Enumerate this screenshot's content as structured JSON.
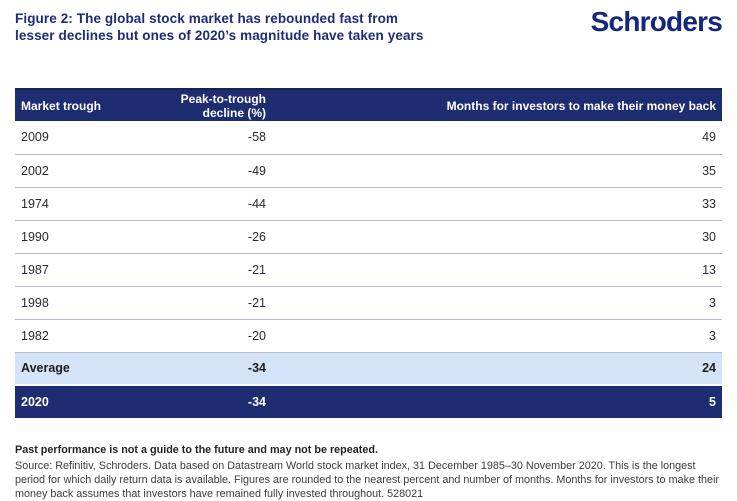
{
  "header": {
    "title_line1": "Figure 2: The global stock market has rebounded fast from",
    "title_line2": "lesser declines but ones of 2020’s magnitude have taken years",
    "logo": {
      "pre": "Schr",
      "o": "o",
      "post": "ders"
    }
  },
  "chart_data": {
    "type": "table",
    "title": "Figure 2: The global stock market has rebounded fast from lesser declines but ones of 2020’s magnitude have taken years",
    "columns": [
      "Market trough",
      "Peak-to-trough decline (%)",
      "Months for investors to make their money back"
    ],
    "rows": [
      [
        "2009",
        -58,
        49
      ],
      [
        "2002",
        -49,
        35
      ],
      [
        "1974",
        -44,
        33
      ],
      [
        "1990",
        -26,
        30
      ],
      [
        "1987",
        -21,
        13
      ],
      [
        "1998",
        -21,
        3
      ],
      [
        "1982",
        -20,
        3
      ]
    ],
    "summary_rows": [
      {
        "label": "Average",
        "decline": -34,
        "months": 24,
        "style": "light-blue"
      },
      {
        "label": "2020",
        "decline": -34,
        "months": 5,
        "style": "navy"
      }
    ]
  },
  "footer": {
    "disclaimer": "Past performance is not a guide to the future and may not be repeated.",
    "source": "Source: Refinitiv, Schroders. Data based on Datastream World stock market index, 31 December 1985–30 November 2020. This is the longest period for which daily return data is available. Figures are rounded to the nearest percent and number of months. Months for investors to make their money back assumes that investors have remained fully invested throughout. 528021"
  },
  "colors": {
    "navy": "#1e2c72",
    "brand_navy": "#14267e",
    "light_blue": "#d3e4f8",
    "divider": "#b9bdd0"
  }
}
